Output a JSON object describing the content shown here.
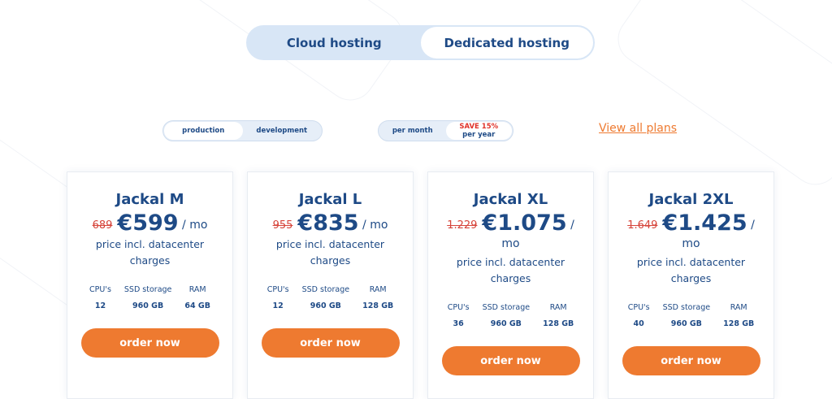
{
  "hosting_toggle": {
    "options": [
      "Cloud hosting",
      "Dedicated hosting"
    ],
    "active": "Cloud hosting"
  },
  "env_toggle": {
    "options": [
      "production",
      "development"
    ],
    "active": "production"
  },
  "billing_toggle": {
    "per_month": "per month",
    "save": "SAVE 15%",
    "per_year": "per year",
    "active": "per month"
  },
  "view_all": "View all plans",
  "colors": {
    "primary": "#1e4a86",
    "accent": "#ee7a30",
    "old_price": "#d6443a"
  },
  "spec_labels": {
    "cpu": "CPU's",
    "ssd": "SSD storage",
    "ram": "RAM"
  },
  "plans": [
    {
      "name": "Jackal M",
      "old_price": "689",
      "price": "€599",
      "unit": "/ mo",
      "note": "price incl. datacenter charges",
      "cpu": "12",
      "ssd": "960 GB",
      "ram": "64 GB",
      "button": "order now"
    },
    {
      "name": "Jackal L",
      "old_price": "955",
      "price": "€835",
      "unit": "/ mo",
      "note": "price incl. datacenter charges",
      "cpu": "12",
      "ssd": "960 GB",
      "ram": "128 GB",
      "button": "order now"
    },
    {
      "name": "Jackal XL",
      "old_price": "1.229",
      "price": "€1.075",
      "unit": "/ mo",
      "note": "price incl. datacenter charges",
      "cpu": "36",
      "ssd": "960 GB",
      "ram": "128 GB",
      "button": "order now"
    },
    {
      "name": "Jackal 2XL",
      "old_price": "1.649",
      "price": "€1.425",
      "unit": "/ mo",
      "note": "price incl. datacenter charges",
      "cpu": "40",
      "ssd": "960 GB",
      "ram": "128 GB",
      "button": "order now"
    }
  ]
}
